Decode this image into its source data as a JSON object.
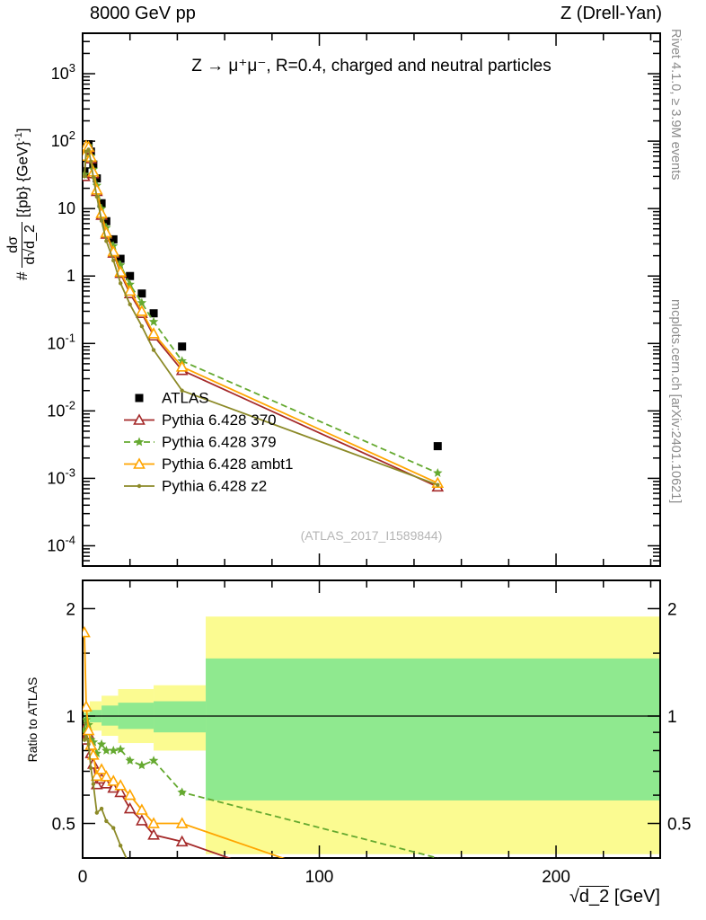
{
  "header": {
    "left": "8000 GeV pp",
    "right": "Z (Drell-Yan)"
  },
  "side_notes": {
    "top_right": "Rivet 4.1.0, ≥ 3.9M events",
    "bottom_right": "mcplots.cern.ch [arXiv:2401.10621]"
  },
  "main_title": "Z → μ⁺μ⁻, R=0.4, charged and neutral particles",
  "watermark": "(ATLAS_2017_I1589844)",
  "ylabel": {
    "prefix": "#",
    "numerator": "dσ",
    "den_pre": "d",
    "den_sqrt": "√",
    "den_arg": "d_2",
    "units_pre": "[{pb} {GeV}",
    "units_sup": "-1",
    "units_post": "]"
  },
  "ratio_label": "Ratio to ATLAS",
  "xlabel": {
    "radical": "√",
    "arg": "d_2",
    "units": " [GeV]"
  },
  "chart_data": {
    "type": "line",
    "title": "Z → μ⁺μ⁻, R=0.4, charged and neutral particles",
    "xlabel": "√d_2 [GeV]",
    "ylabel": "# dσ/d√d_2 [{pb} {GeV}^-1]",
    "legend_position": "middle-left",
    "grid": false,
    "x_values": [
      0.75,
      1.5,
      2.5,
      3.5,
      4.5,
      6,
      8,
      10,
      13,
      16,
      20,
      25,
      30,
      42,
      150
    ],
    "series": [
      {
        "name": "ATLAS",
        "color": "#000000",
        "marker": "square-filled",
        "line": "none",
        "values": [
          35,
          80,
          90,
          70,
          45,
          28,
          12,
          6.5,
          3.5,
          1.8,
          1.0,
          0.55,
          0.28,
          0.09,
          0.003
        ]
      },
      {
        "name": "Pythia 6.428 370",
        "color": "#a52a2a",
        "marker": "triangle-open",
        "line": "solid",
        "values": [
          30,
          75,
          80,
          55,
          33,
          18,
          8,
          4.2,
          2.2,
          1.1,
          0.55,
          0.28,
          0.13,
          0.04,
          0.00075
        ]
      },
      {
        "name": "Pythia 6.428 379",
        "color": "#65a930",
        "marker": "star",
        "line": "dashed",
        "values": [
          32,
          78,
          85,
          60,
          38,
          22,
          10,
          5.2,
          2.8,
          1.45,
          0.75,
          0.4,
          0.21,
          0.055,
          0.0012
        ]
      },
      {
        "name": "Pythia 6.428 ambt1",
        "color": "#ffa500",
        "marker": "triangle-open",
        "line": "solid",
        "values": [
          60,
          85,
          82,
          58,
          35,
          19,
          8.5,
          4.4,
          2.3,
          1.15,
          0.6,
          0.3,
          0.14,
          0.045,
          0.00085
        ]
      },
      {
        "name": "Pythia 6.428 z2",
        "color": "#8c8a28",
        "marker": "dot",
        "line": "solid",
        "values": [
          30,
          70,
          75,
          50,
          29,
          15,
          6.6,
          3.3,
          1.7,
          0.78,
          0.38,
          0.18,
          0.08,
          0.02,
          0.0008
        ]
      }
    ],
    "x_axis": {
      "min": 0,
      "max": 244,
      "major_ticks": [
        0,
        100,
        200
      ],
      "minor_step": 20
    },
    "y_axis": {
      "scale": "log",
      "min_exp": -4.3,
      "max_exp": 3.6,
      "major_exps": [
        -4,
        -3,
        -2,
        -1,
        0,
        1,
        2,
        3
      ]
    },
    "ratio_axis": {
      "scale": "log",
      "min": 0.4,
      "max": 2.4,
      "labeled_ticks": [
        0.5,
        1,
        2
      ],
      "minor_ticks": [
        0.4,
        0.6,
        0.7,
        0.8,
        0.9,
        1.5
      ]
    },
    "bands": {
      "yellow": "#fbfb91",
      "green": "#8fe98f",
      "segments": [
        {
          "x0": 0,
          "x1": 3,
          "ylo": 0.95,
          "yhi": 1.06,
          "glo": 0.98,
          "ghi": 1.02
        },
        {
          "x0": 3,
          "x1": 8,
          "ylo": 0.91,
          "yhi": 1.1,
          "glo": 0.96,
          "ghi": 1.04
        },
        {
          "x0": 8,
          "x1": 15,
          "ylo": 0.88,
          "yhi": 1.14,
          "glo": 0.94,
          "ghi": 1.07
        },
        {
          "x0": 15,
          "x1": 30,
          "ylo": 0.84,
          "yhi": 1.19,
          "glo": 0.92,
          "ghi": 1.09
        },
        {
          "x0": 30,
          "x1": 52,
          "ylo": 0.8,
          "yhi": 1.22,
          "glo": 0.9,
          "ghi": 1.1
        },
        {
          "x0": 52,
          "x1": 244,
          "ylo": 0.41,
          "yhi": 1.9,
          "glo": 0.58,
          "ghi": 1.45
        }
      ]
    }
  }
}
